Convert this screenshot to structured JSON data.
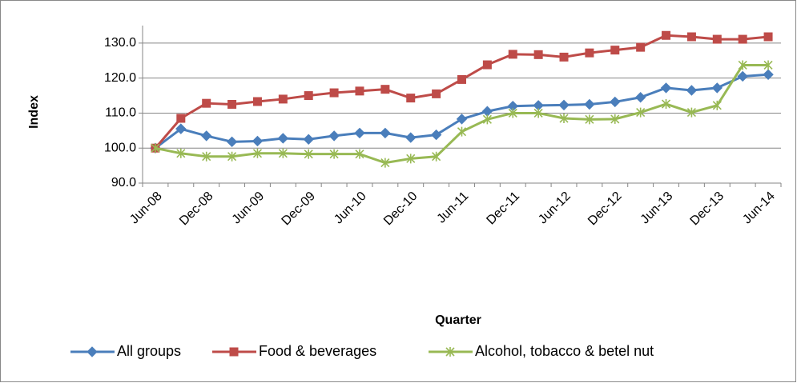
{
  "chart_data": {
    "type": "line",
    "x_label": "Quarter",
    "y_label": "Index",
    "categories": [
      "Jun-08",
      null,
      "Dec-08",
      null,
      "Jun-09",
      null,
      "Dec-09",
      null,
      "Jun-10",
      null,
      "Dec-10",
      null,
      "Jun-11",
      null,
      "Dec-11",
      null,
      "Jun-12",
      null,
      "Dec-12",
      null,
      "Jun-13",
      null,
      "Dec-13",
      null,
      "Jun-14"
    ],
    "series": [
      {
        "name": "All groups",
        "color": "#4a7ebb",
        "marker": "diamond",
        "values": [
          100,
          105.5,
          103.5,
          101.8,
          102,
          102.8,
          102.5,
          103.5,
          104.3,
          104.3,
          103,
          103.8,
          108.3,
          110.5,
          112,
          112.2,
          112.3,
          112.5,
          113.2,
          114.5,
          117.2,
          116.5,
          117.2,
          120.5,
          121
        ]
      },
      {
        "name": "Food & beverages",
        "color": "#be4b48",
        "marker": "square",
        "values": [
          100,
          108.5,
          112.8,
          112.5,
          113.3,
          114,
          115,
          115.8,
          116.3,
          116.8,
          114.3,
          115.5,
          119.6,
          123.8,
          126.8,
          126.7,
          126,
          127.2,
          128,
          128.8,
          132.2,
          131.8,
          131.1,
          131.1,
          131.8
        ]
      },
      {
        "name": "Alcohol, tobacco & betel nut",
        "color": "#98b954",
        "marker": "star",
        "values": [
          100,
          98.5,
          97.6,
          97.6,
          98.5,
          98.5,
          98.3,
          98.3,
          98.3,
          95.8,
          97,
          97.6,
          104.7,
          108.2,
          110,
          110,
          108.5,
          108.2,
          108.3,
          110.2,
          112.6,
          110.2,
          112.2,
          123.7,
          123.7
        ]
      }
    ],
    "ylim": [
      90,
      135
    ],
    "yticks": [
      {
        "value": 90,
        "label": "90.0"
      },
      {
        "value": 100,
        "label": "100.0"
      },
      {
        "value": 110,
        "label": "110.0"
      },
      {
        "value": 120,
        "label": "120.0"
      },
      {
        "value": 130,
        "label": "130.0"
      }
    ],
    "grid": true
  }
}
